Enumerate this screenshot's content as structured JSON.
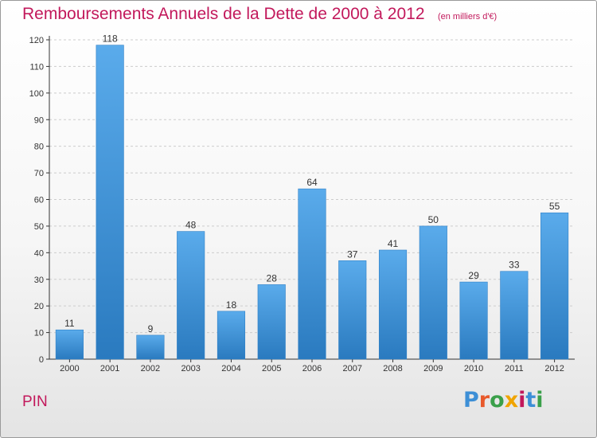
{
  "header": {
    "title": "Remboursements Annuels de la Dette de 2000 à 2012",
    "unit": "(en milliers d'€)"
  },
  "footer": {
    "commune": "PIN",
    "logo": {
      "text": "Proxiti",
      "colors": [
        "#3d8fd6",
        "#e8592b",
        "#3aa04a",
        "#f0a400",
        "#c2185b",
        "#3d8fd6",
        "#3aa04a"
      ]
    }
  },
  "colors": {
    "bar_top": "#5aabeb",
    "bar_bottom": "#2a7abf",
    "title": "#c2185b",
    "axis": "#333333",
    "grid": "#cccccc"
  },
  "chart_data": {
    "type": "bar",
    "title": "Remboursements Annuels de la Dette de 2000 à 2012",
    "subtitle": "(en milliers d'€)",
    "categories": [
      "2000",
      "2001",
      "2002",
      "2003",
      "2004",
      "2005",
      "2006",
      "2007",
      "2008",
      "2009",
      "2010",
      "2011",
      "2012"
    ],
    "values": [
      11,
      118,
      9,
      48,
      18,
      28,
      64,
      37,
      41,
      50,
      29,
      33,
      55
    ],
    "ylim": [
      0,
      120
    ],
    "yticks": [
      0,
      10,
      20,
      30,
      40,
      50,
      60,
      70,
      80,
      90,
      100,
      110,
      120
    ],
    "grid": true,
    "xlabel": "",
    "ylabel": ""
  }
}
